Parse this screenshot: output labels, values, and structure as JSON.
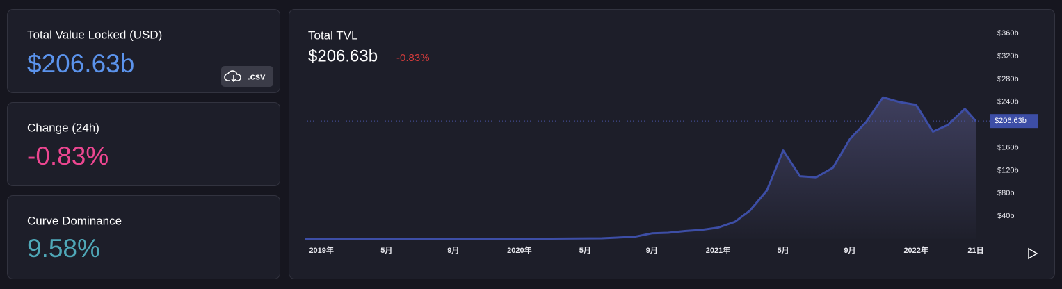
{
  "cards": [
    {
      "label": "Total Value Locked (USD)",
      "value": "$206.63b"
    },
    {
      "label": "Change (24h)",
      "value": "-0.83%"
    },
    {
      "label": "Curve Dominance",
      "value": "9.58%"
    }
  ],
  "csv_button": ".csv",
  "chart_data": {
    "type": "area",
    "title": "Total TVL",
    "headline": "$206.63b",
    "change": "-0.83%",
    "x": [
      "2018-12",
      "2019-01",
      "2019-03",
      "2019-06",
      "2019-09",
      "2019-12",
      "2020-03",
      "2020-06",
      "2020-08",
      "2020-09",
      "2020-10",
      "2020-11",
      "2020-12",
      "2021-01",
      "2021-02",
      "2021-03",
      "2021-04",
      "2021-05",
      "2021-06",
      "2021-07",
      "2021-08",
      "2021-09",
      "2021-10",
      "2021-11",
      "2021-12",
      "2022-01",
      "2022-02",
      "2022-03",
      "2022-04",
      "2022-04-21"
    ],
    "values": [
      0.3,
      0.3,
      0.3,
      0.5,
      0.5,
      0.6,
      0.6,
      1.2,
      4,
      10,
      11,
      14,
      16,
      20,
      30,
      50,
      85,
      155,
      110,
      108,
      125,
      175,
      205,
      248,
      240,
      235,
      188,
      200,
      228,
      206.63
    ],
    "color": "#3d4ea6",
    "xlim": [
      "2018-12-01",
      "2022-04-21"
    ],
    "xticks": [
      {
        "value": "2019-01",
        "label": "2019年"
      },
      {
        "value": "2019-05",
        "label": "5月"
      },
      {
        "value": "2019-09",
        "label": "9月"
      },
      {
        "value": "2020-01",
        "label": "2020年"
      },
      {
        "value": "2020-05",
        "label": "5月"
      },
      {
        "value": "2020-09",
        "label": "9月"
      },
      {
        "value": "2021-01",
        "label": "2021年"
      },
      {
        "value": "2021-05",
        "label": "5月"
      },
      {
        "value": "2021-09",
        "label": "9月"
      },
      {
        "value": "2022-01",
        "label": "2022年"
      },
      {
        "value": "2022-04-21",
        "label": "21日"
      }
    ],
    "ylim": [
      0,
      380
    ],
    "yticks": [
      {
        "value": 40,
        "label": "$40b"
      },
      {
        "value": 80,
        "label": "$80b"
      },
      {
        "value": 120,
        "label": "$120b"
      },
      {
        "value": 160,
        "label": "$160b"
      },
      {
        "value": 240,
        "label": "$240b"
      },
      {
        "value": 280,
        "label": "$280b"
      },
      {
        "value": 320,
        "label": "$320b"
      },
      {
        "value": 360,
        "label": "$360b"
      }
    ],
    "current_value": {
      "value": 206.63,
      "label": "$206.63b"
    }
  }
}
